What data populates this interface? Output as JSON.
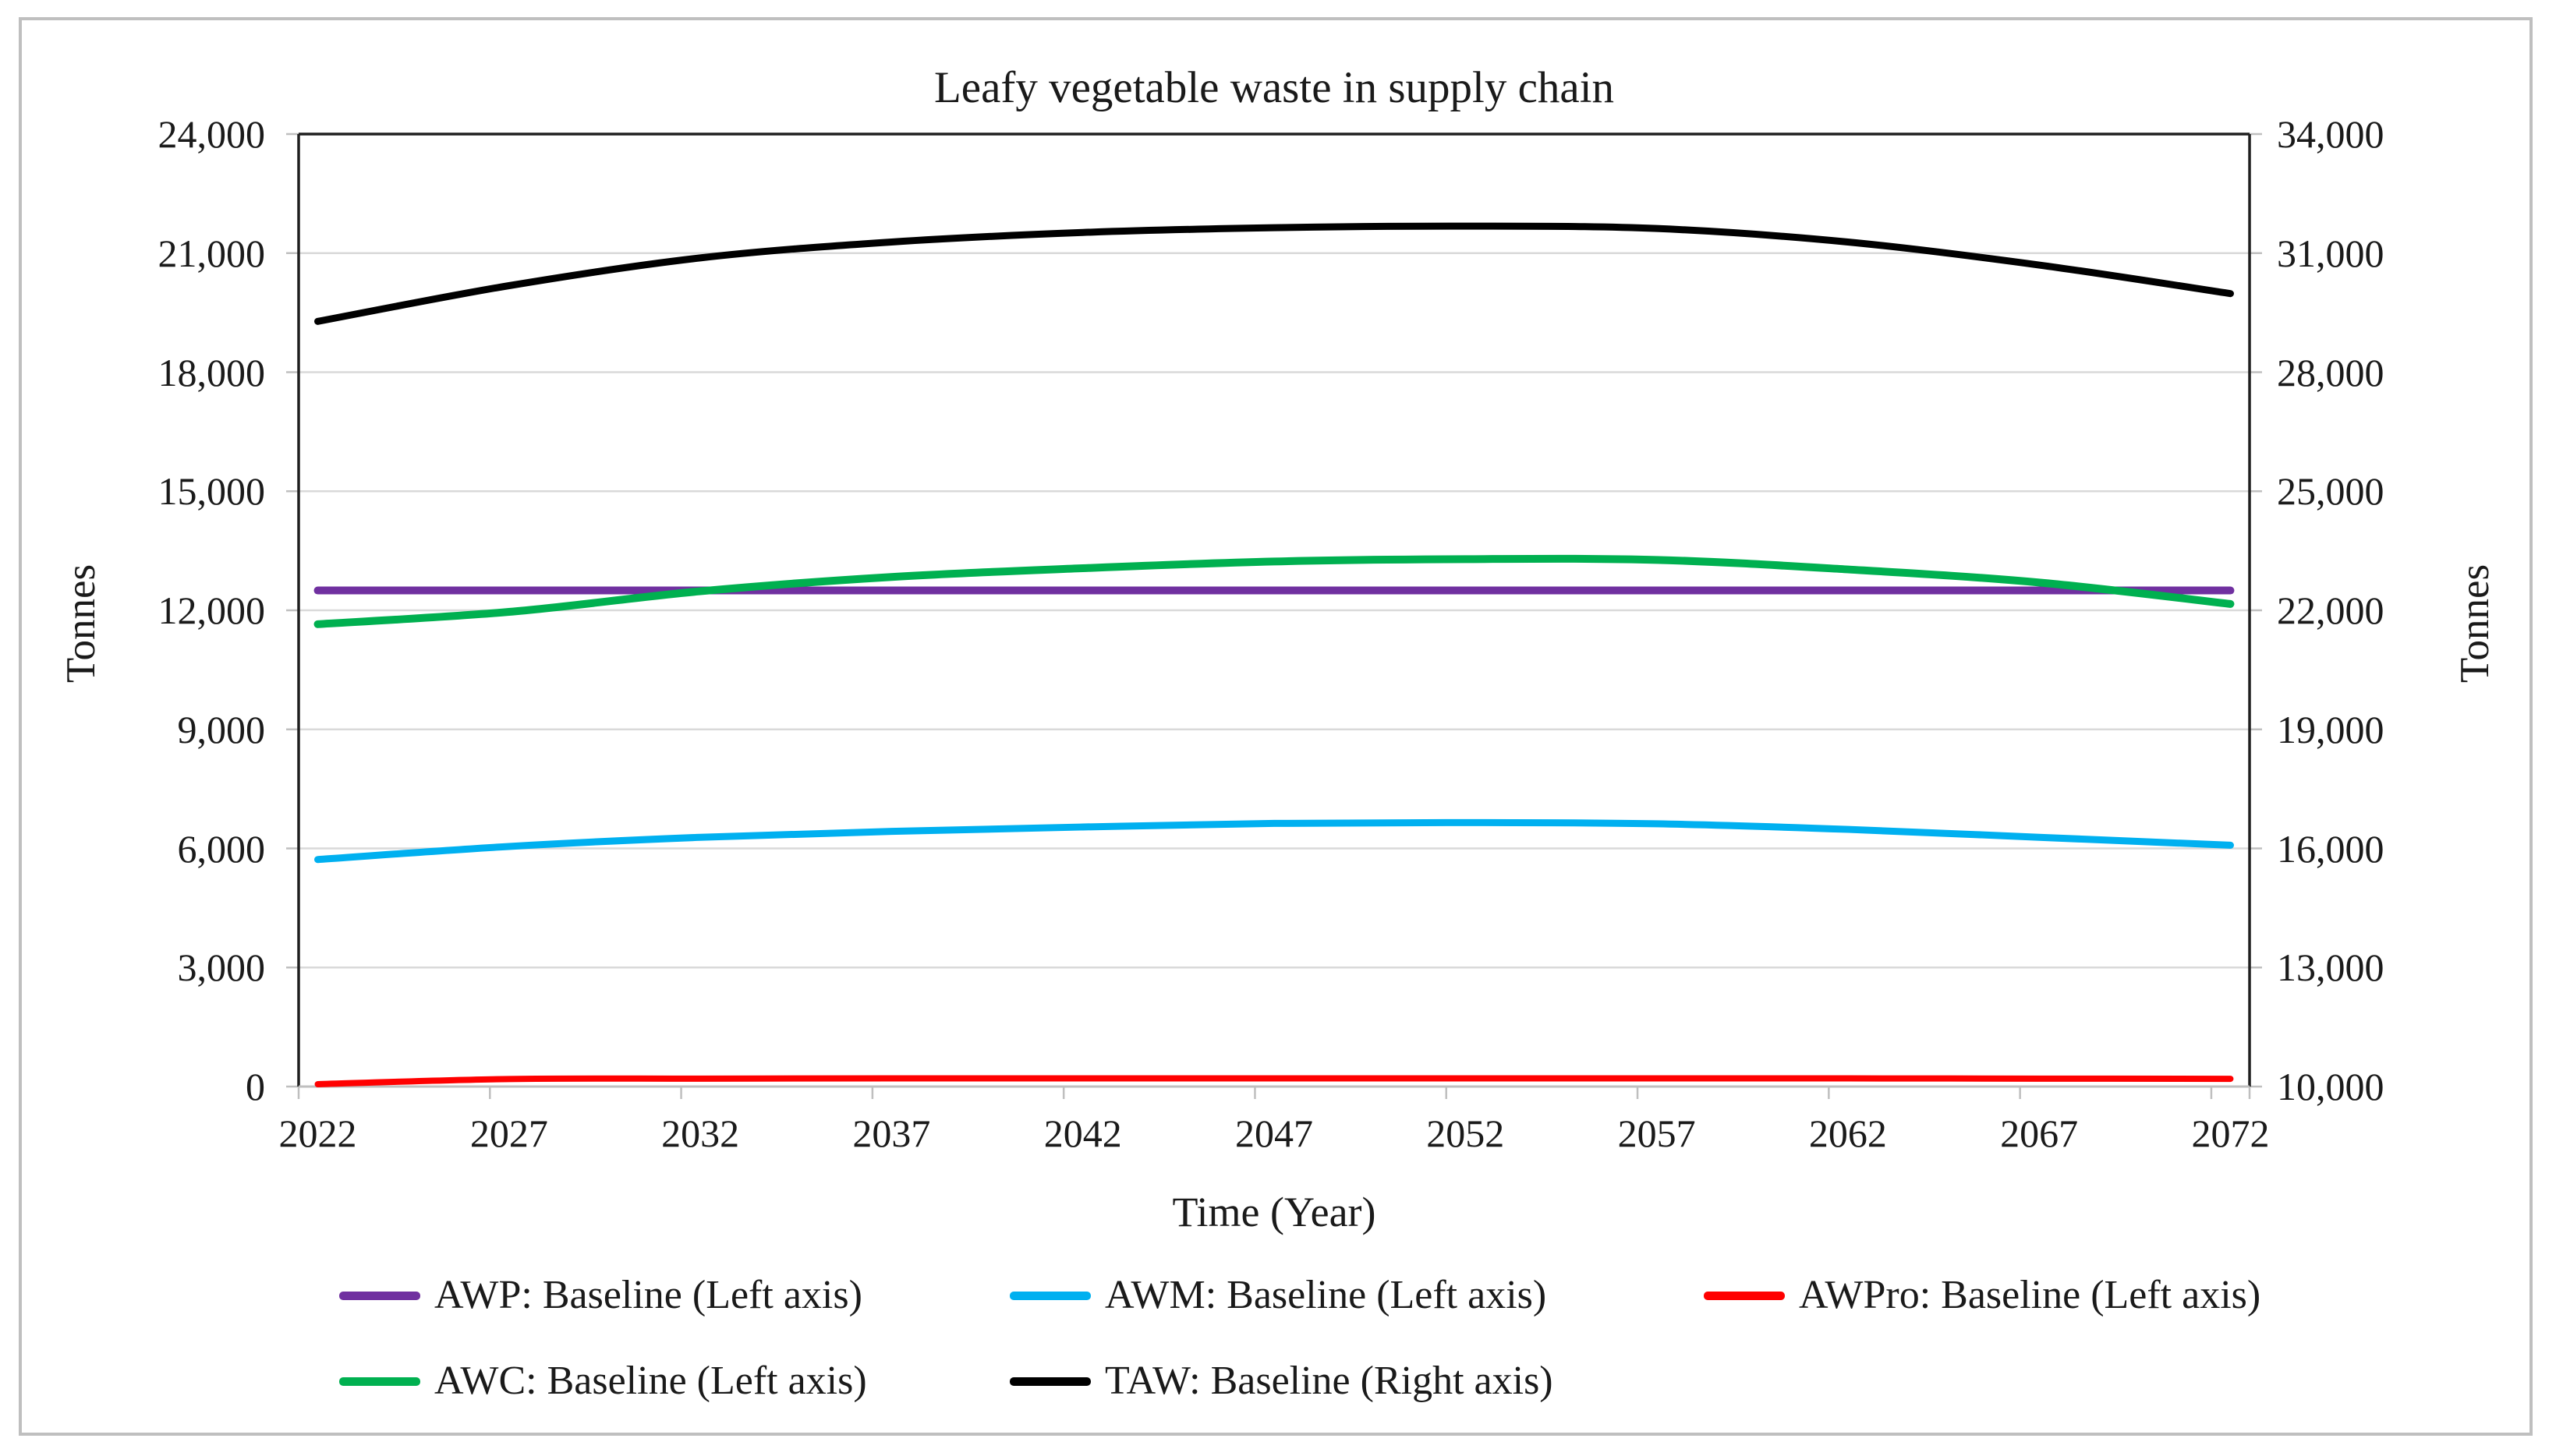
{
  "figure": {
    "title": "Leafy vegetable waste in supply chain",
    "x_axis_title": "Time (Year)",
    "y_axis_left_title": "Tonnes",
    "y_axis_right_title": "Tonnes"
  },
  "chart_data": {
    "type": "line",
    "title": "Leafy vegetable waste in supply chain",
    "xlabel": "Time (Year)",
    "ylabel_left": "Tonnes",
    "ylabel_right": "Tonnes",
    "grid": "horizontal",
    "legend_position": "bottom",
    "x": [
      2022,
      2027,
      2032,
      2037,
      2042,
      2047,
      2052,
      2057,
      2062,
      2067,
      2072
    ],
    "x_tick_labels": [
      "2022",
      "2027",
      "2032",
      "2037",
      "2042",
      "2047",
      "2052",
      "2057",
      "2062",
      "2067",
      "2072"
    ],
    "left_axis": {
      "min": 0,
      "max": 24000,
      "step": 3000,
      "tick_labels": [
        "0",
        "3,000",
        "6,000",
        "9,000",
        "12,000",
        "15,000",
        "18,000",
        "21,000",
        "24,000"
      ]
    },
    "right_axis": {
      "min": 10000,
      "max": 34000,
      "step": 3000,
      "tick_labels": [
        "10,000",
        "13,000",
        "16,000",
        "19,000",
        "22,000",
        "25,000",
        "28,000",
        "31,000",
        "34,000"
      ]
    },
    "series": [
      {
        "name": "AWP: Baseline (Left axis)",
        "axis": "left",
        "color": "#7030A0",
        "values": [
          12500,
          12500,
          12500,
          12500,
          12500,
          12500,
          12500,
          12500,
          12500,
          12500,
          12500
        ]
      },
      {
        "name": "AWM: Baseline (Left axis)",
        "axis": "left",
        "color": "#00B0F0",
        "values": [
          5720,
          6050,
          6280,
          6430,
          6540,
          6630,
          6650,
          6620,
          6480,
          6280,
          6080
        ]
      },
      {
        "name": "AWPro: Baseline (Left axis)",
        "axis": "left",
        "color": "#FF0000",
        "values": [
          60,
          190,
          200,
          205,
          205,
          205,
          205,
          205,
          205,
          200,
          195
        ]
      },
      {
        "name": "AWC: Baseline (Left axis)",
        "axis": "left",
        "color": "#00B050",
        "values": [
          11650,
          11960,
          12480,
          12840,
          13060,
          13230,
          13290,
          13270,
          13030,
          12700,
          12160
        ]
      },
      {
        "name": "TAW: Baseline (Right axis)",
        "axis": "right",
        "color": "#000000",
        "values": [
          29280,
          30180,
          30880,
          31280,
          31520,
          31640,
          31680,
          31620,
          31280,
          30700,
          29980
        ]
      }
    ],
    "colors": {
      "gridline": "#D9D9D9",
      "plot_border": "#1f1f1f",
      "bottom_axis": "#BFBFBF",
      "tick_mark": "#BFBFBF",
      "figure_border": "#BFBFBF"
    }
  }
}
